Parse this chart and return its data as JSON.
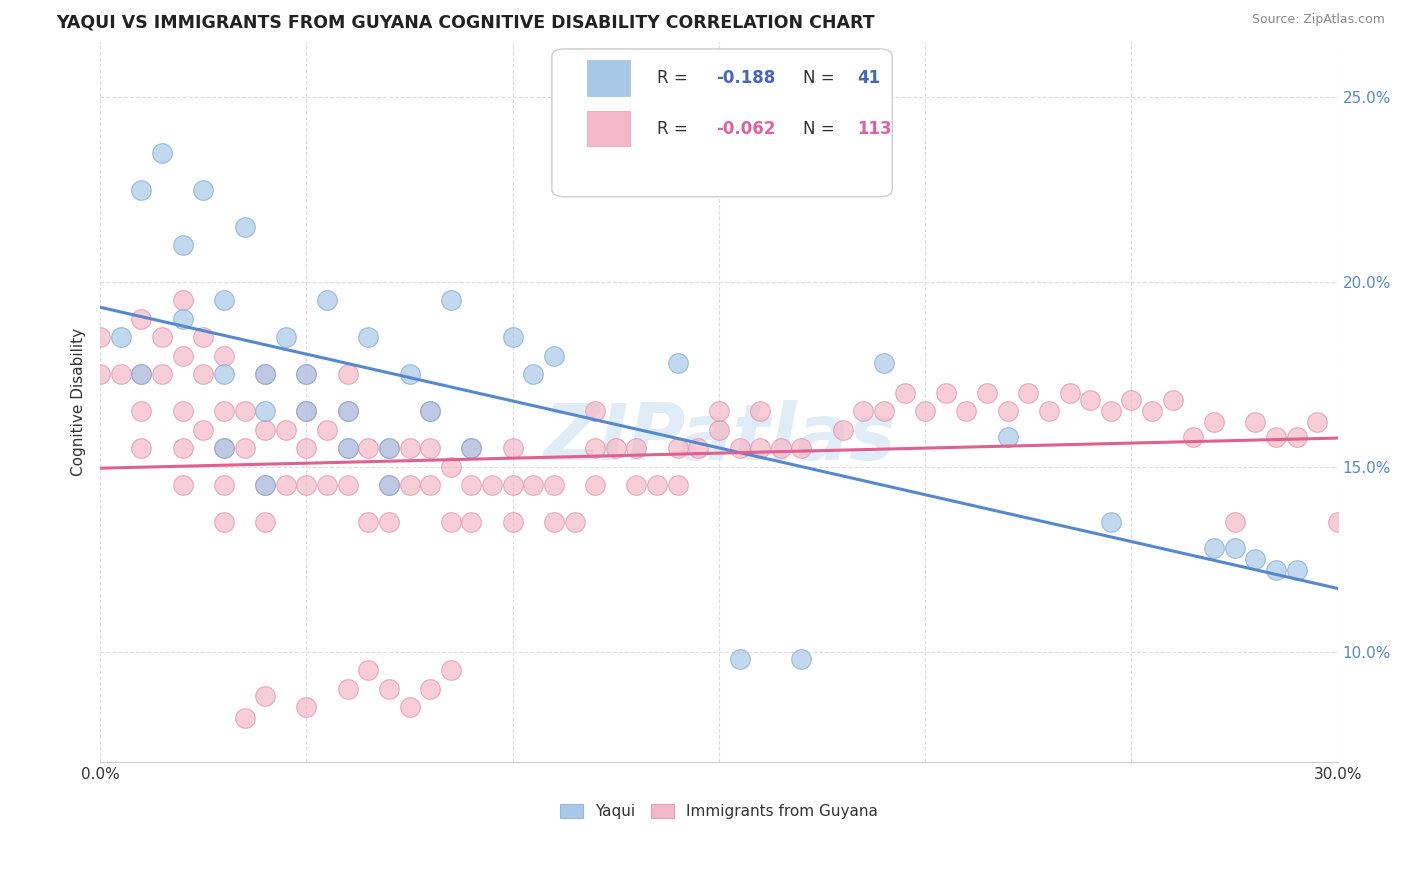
{
  "title": "YAQUI VS IMMIGRANTS FROM GUYANA COGNITIVE DISABILITY CORRELATION CHART",
  "source": "Source: ZipAtlas.com",
  "ylabel": "Cognitive Disability",
  "xlim": [
    0.0,
    0.3
  ],
  "ylim": [
    0.07,
    0.265
  ],
  "series1_name": "Yaqui",
  "series1_color": "#a8c8e8",
  "series1_line_color": "#5588cc",
  "series1_R": -0.188,
  "series1_N": 41,
  "series2_name": "Immigrants from Guyana",
  "series2_color": "#f4b8c8",
  "series2_line_color": "#e06090",
  "series2_R": -0.062,
  "series2_N": 113,
  "watermark": "ZIPatlas",
  "background_color": "#ffffff",
  "grid_color": "#dddddd",
  "legend_text_color": "#4466bb",
  "yaqui_x": [
    0.005,
    0.01,
    0.015,
    0.01,
    0.02,
    0.02,
    0.025,
    0.03,
    0.03,
    0.03,
    0.035,
    0.04,
    0.04,
    0.04,
    0.045,
    0.05,
    0.05,
    0.055,
    0.06,
    0.06,
    0.065,
    0.07,
    0.07,
    0.075,
    0.08,
    0.085,
    0.09,
    0.1,
    0.105,
    0.11,
    0.14,
    0.155,
    0.17,
    0.19,
    0.22,
    0.245,
    0.27,
    0.275,
    0.28,
    0.285,
    0.29
  ],
  "yaqui_y": [
    0.185,
    0.225,
    0.235,
    0.175,
    0.19,
    0.21,
    0.225,
    0.155,
    0.175,
    0.195,
    0.215,
    0.145,
    0.165,
    0.175,
    0.185,
    0.165,
    0.175,
    0.195,
    0.155,
    0.165,
    0.185,
    0.145,
    0.155,
    0.175,
    0.165,
    0.195,
    0.155,
    0.185,
    0.175,
    0.18,
    0.178,
    0.098,
    0.098,
    0.178,
    0.158,
    0.135,
    0.128,
    0.128,
    0.125,
    0.122,
    0.122
  ],
  "guyana_x": [
    0.0,
    0.0,
    0.005,
    0.01,
    0.01,
    0.01,
    0.01,
    0.015,
    0.015,
    0.02,
    0.02,
    0.02,
    0.02,
    0.02,
    0.025,
    0.025,
    0.025,
    0.03,
    0.03,
    0.03,
    0.03,
    0.03,
    0.035,
    0.035,
    0.04,
    0.04,
    0.04,
    0.04,
    0.045,
    0.045,
    0.05,
    0.05,
    0.05,
    0.05,
    0.055,
    0.055,
    0.06,
    0.06,
    0.06,
    0.06,
    0.065,
    0.065,
    0.07,
    0.07,
    0.07,
    0.075,
    0.075,
    0.08,
    0.08,
    0.08,
    0.085,
    0.085,
    0.09,
    0.09,
    0.09,
    0.095,
    0.1,
    0.1,
    0.1,
    0.105,
    0.11,
    0.11,
    0.115,
    0.12,
    0.12,
    0.12,
    0.125,
    0.13,
    0.13,
    0.135,
    0.14,
    0.14,
    0.145,
    0.15,
    0.15,
    0.155,
    0.16,
    0.16,
    0.165,
    0.17,
    0.18,
    0.185,
    0.19,
    0.195,
    0.2,
    0.205,
    0.21,
    0.215,
    0.22,
    0.225,
    0.23,
    0.235,
    0.24,
    0.245,
    0.25,
    0.255,
    0.26,
    0.265,
    0.27,
    0.275,
    0.28,
    0.285,
    0.29,
    0.295,
    0.3,
    0.065,
    0.07,
    0.075,
    0.08,
    0.085,
    0.05,
    0.06,
    0.04,
    0.035
  ],
  "guyana_y": [
    0.175,
    0.185,
    0.175,
    0.155,
    0.165,
    0.175,
    0.19,
    0.185,
    0.175,
    0.145,
    0.155,
    0.165,
    0.18,
    0.195,
    0.16,
    0.175,
    0.185,
    0.135,
    0.145,
    0.155,
    0.165,
    0.18,
    0.155,
    0.165,
    0.135,
    0.145,
    0.16,
    0.175,
    0.145,
    0.16,
    0.145,
    0.155,
    0.165,
    0.175,
    0.145,
    0.16,
    0.145,
    0.155,
    0.165,
    0.175,
    0.135,
    0.155,
    0.135,
    0.145,
    0.155,
    0.145,
    0.155,
    0.145,
    0.155,
    0.165,
    0.135,
    0.15,
    0.135,
    0.145,
    0.155,
    0.145,
    0.135,
    0.145,
    0.155,
    0.145,
    0.135,
    0.145,
    0.135,
    0.145,
    0.155,
    0.165,
    0.155,
    0.145,
    0.155,
    0.145,
    0.145,
    0.155,
    0.155,
    0.16,
    0.165,
    0.155,
    0.155,
    0.165,
    0.155,
    0.155,
    0.16,
    0.165,
    0.165,
    0.17,
    0.165,
    0.17,
    0.165,
    0.17,
    0.165,
    0.17,
    0.165,
    0.17,
    0.168,
    0.165,
    0.168,
    0.165,
    0.168,
    0.158,
    0.162,
    0.135,
    0.162,
    0.158,
    0.158,
    0.162,
    0.135,
    0.095,
    0.09,
    0.085,
    0.09,
    0.095,
    0.085,
    0.09,
    0.088,
    0.082
  ]
}
